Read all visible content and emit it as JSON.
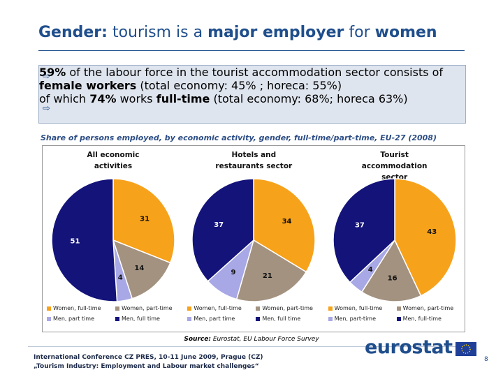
{
  "slide": {
    "title": [
      {
        "text": "Gender:",
        "bold": true
      },
      {
        "text": " tourism is a ",
        "bold": false
      },
      {
        "text": "major employer",
        "bold": true
      },
      {
        "text": " for ",
        "bold": false
      },
      {
        "text": "women",
        "bold": true
      }
    ],
    "bullets": [
      [
        {
          "text": "59%",
          "bold": true
        },
        {
          "text": " of the labour force in the tourist accommodation sector consists of ",
          "bold": false
        },
        {
          "text": "female workers",
          "bold": true
        },
        {
          "text": " (total economy: 45% ; horeca: 55%)",
          "bold": false
        }
      ],
      [
        {
          "text": "of which ",
          "bold": false
        },
        {
          "text": "74%",
          "bold": true
        },
        {
          "text": " works ",
          "bold": false
        },
        {
          "text": "full-time",
          "bold": true
        },
        {
          "text": " (total economy: 68%; horeca 63%)",
          "bold": false
        }
      ]
    ],
    "caption": "Share of persons employed, by economic activity, gender, full-time/part-time, EU-27 (2008)",
    "source_label": "Source:",
    "source": "Eurostat, EU Labour Force Survey",
    "footer": [
      "International Conference CZ PRES, 10-11 June 2009, Prague (CZ)",
      "„Tourism Industry: Employment and Labour market challenges“"
    ],
    "logo": "eurostat",
    "page_number": "8"
  },
  "chart_data": [
    {
      "type": "pie",
      "title": "All economic activities",
      "categories": [
        "Women, full-time",
        "Women, part-time",
        "Men, part time",
        "Men, full time"
      ],
      "values": [
        31,
        14,
        4,
        51
      ],
      "colors": [
        "#f7a21b",
        "#a39280",
        "#a8a8e6",
        "#13137a"
      ]
    },
    {
      "type": "pie",
      "title": "Hotels and restaurants sector",
      "categories": [
        "Women, full-time",
        "Women, part-time",
        "Men, part time",
        "Men, full time"
      ],
      "values": [
        34,
        21,
        9,
        37
      ],
      "colors": [
        "#f7a21b",
        "#a39280",
        "#a8a8e6",
        "#13137a"
      ]
    },
    {
      "type": "pie",
      "title": "Tourist accommodation sector",
      "categories": [
        "Women, full-time",
        "Women, part-time",
        "Men, part-time",
        "Men, full-time"
      ],
      "values": [
        43,
        16,
        4,
        37
      ],
      "colors": [
        "#f7a21b",
        "#a39280",
        "#a8a8e6",
        "#13137a"
      ]
    }
  ]
}
